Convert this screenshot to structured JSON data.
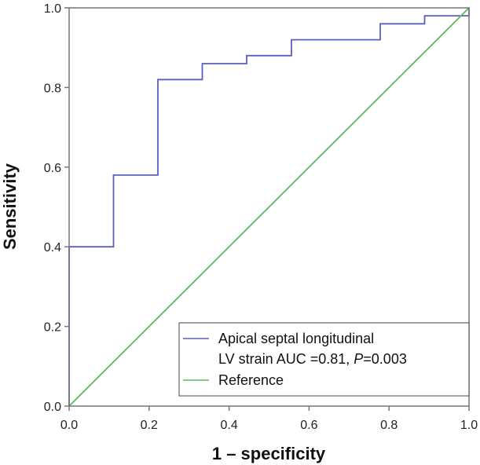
{
  "chart_data": {
    "type": "line",
    "title": "",
    "xlabel": "1 – specificity",
    "ylabel": "Sensitivity",
    "xlim": [
      0,
      1
    ],
    "ylim": [
      0,
      1
    ],
    "grid": false,
    "x_ticks": [
      "0.0",
      "0.2",
      "0.4",
      "0.6",
      "0.8",
      "1.0"
    ],
    "y_ticks": [
      "0.0",
      "0.2",
      "0.4",
      "0.6",
      "0.8",
      "1.0"
    ],
    "legend_position": "bottom-right",
    "series": [
      {
        "name": "Apical septal longitudinal LV strain AUC =0.81, P=0.003",
        "legend_line1": "Apical septal longitudinal",
        "legend_line2a": "LV strain AUC =0.81, ",
        "legend_line2b": "P",
        "legend_line2c": "=0.003",
        "color": "#5a5fc0",
        "step": true,
        "x": [
          0,
          0,
          0.111,
          0.111,
          0.222,
          0.222,
          0.333,
          0.333,
          0.444,
          0.444,
          0.556,
          0.556,
          0.778,
          0.778,
          0.889,
          0.889,
          1.0,
          1.0
        ],
        "y": [
          0,
          0.4,
          0.4,
          0.58,
          0.58,
          0.82,
          0.82,
          0.86,
          0.86,
          0.88,
          0.88,
          0.92,
          0.92,
          0.96,
          0.96,
          0.98,
          0.98,
          1.0
        ]
      },
      {
        "name": "Reference",
        "color": "#5cb85c",
        "x": [
          0,
          1
        ],
        "y": [
          0,
          1
        ]
      }
    ]
  }
}
